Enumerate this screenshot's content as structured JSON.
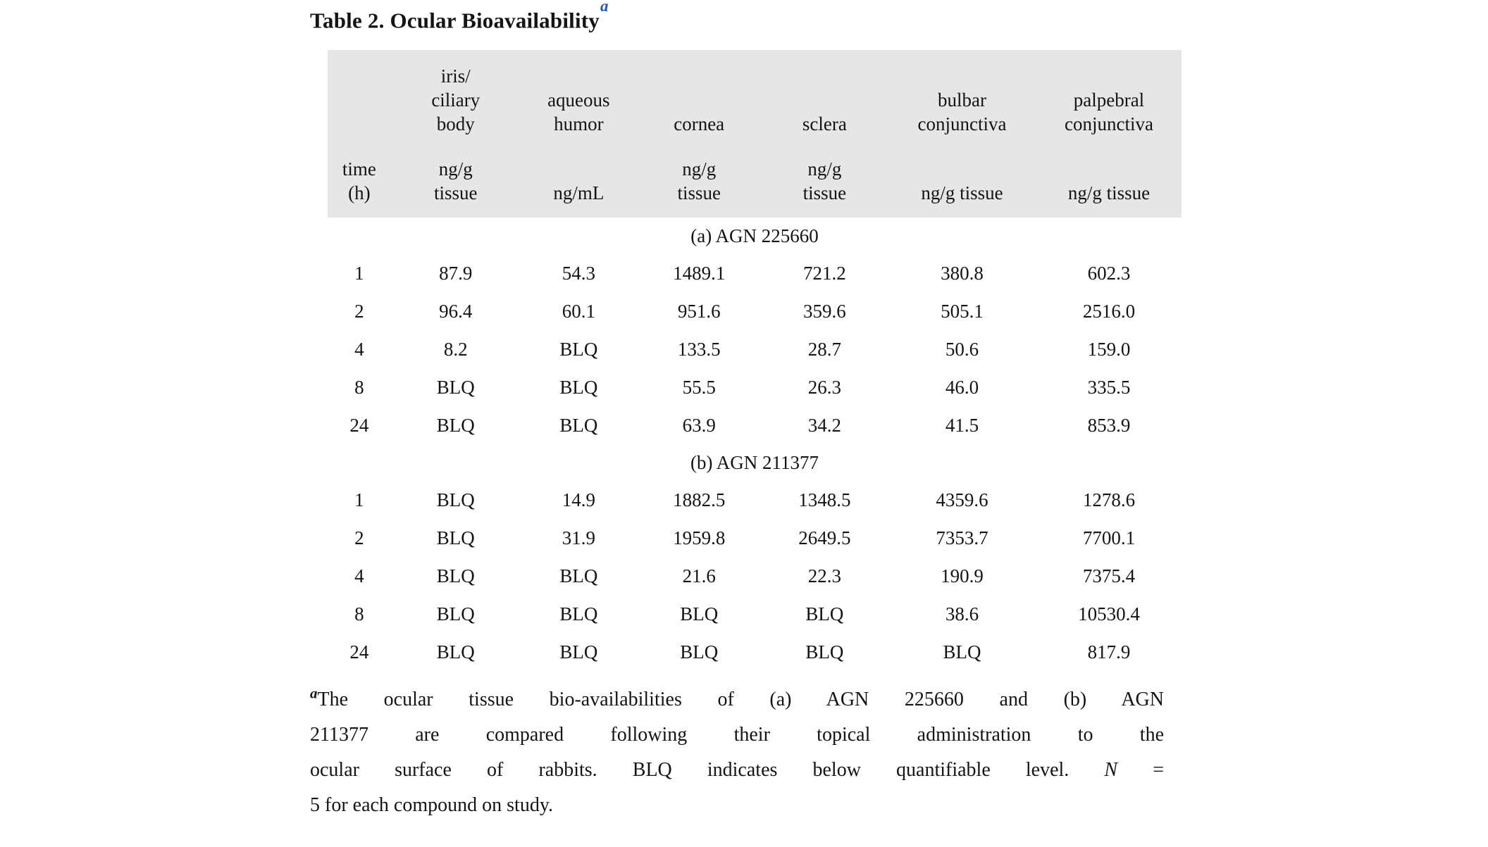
{
  "title": {
    "text": "Table 2. Ocular Bioavailability",
    "marker": "a"
  },
  "table": {
    "columns": [
      {
        "name": "",
        "unit": "time\n(h)"
      },
      {
        "name": "iris/\nciliary\nbody",
        "unit": "ng/g\ntissue"
      },
      {
        "name": "aqueous\nhumor",
        "unit": "ng/mL"
      },
      {
        "name": "cornea",
        "unit": "ng/g\ntissue"
      },
      {
        "name": "sclera",
        "unit": "ng/g\ntissue"
      },
      {
        "name": "bulbar\nconjunctiva",
        "unit": "ng/g tissue"
      },
      {
        "name": "palpebral\nconjunctiva",
        "unit": "ng/g tissue"
      }
    ],
    "sections": [
      {
        "label": "(a) AGN 225660",
        "rows": [
          [
            "1",
            "87.9",
            "54.3",
            "1489.1",
            "721.2",
            "380.8",
            "602.3"
          ],
          [
            "2",
            "96.4",
            "60.1",
            "951.6",
            "359.6",
            "505.1",
            "2516.0"
          ],
          [
            "4",
            "8.2",
            "BLQ",
            "133.5",
            "28.7",
            "50.6",
            "159.0"
          ],
          [
            "8",
            "BLQ",
            "BLQ",
            "55.5",
            "26.3",
            "46.0",
            "335.5"
          ],
          [
            "24",
            "BLQ",
            "BLQ",
            "63.9",
            "34.2",
            "41.5",
            "853.9"
          ]
        ]
      },
      {
        "label": "(b) AGN 211377",
        "rows": [
          [
            "1",
            "BLQ",
            "14.9",
            "1882.5",
            "1348.5",
            "4359.6",
            "1278.6"
          ],
          [
            "2",
            "BLQ",
            "31.9",
            "1959.8",
            "2649.5",
            "7353.7",
            "7700.1"
          ],
          [
            "4",
            "BLQ",
            "BLQ",
            "21.6",
            "22.3",
            "190.9",
            "7375.4"
          ],
          [
            "8",
            "BLQ",
            "BLQ",
            "BLQ",
            "BLQ",
            "38.6",
            "10530.4"
          ],
          [
            "24",
            "BLQ",
            "BLQ",
            "BLQ",
            "BLQ",
            "BLQ",
            "817.9"
          ]
        ]
      }
    ]
  },
  "footnote": {
    "marker": "a",
    "line1": "The ocular tissue bio-availabilities of (a) AGN 225660 and (b) AGN",
    "line2": "211377 are compared following their topical administration to the",
    "line3_before": "ocular surface of rabbits. BLQ indicates below quantifiable level. ",
    "line3_n": "N",
    "line3_after": " =",
    "line4": "5 for each compound on study."
  },
  "colors": {
    "header_background": "#e6e6e6",
    "title_marker_blue": "#2b55b0"
  }
}
